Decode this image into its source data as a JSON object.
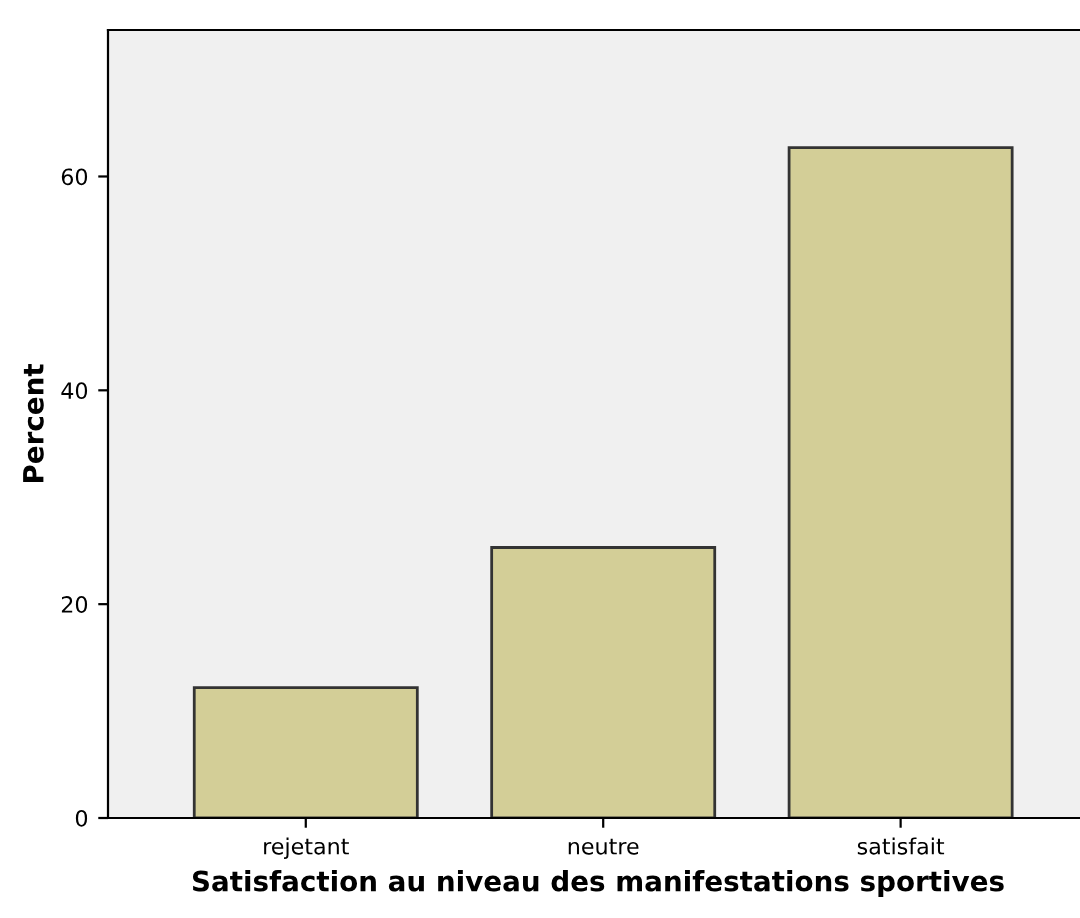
{
  "chart_data": {
    "type": "bar",
    "xlabel": "Satisfaction au niveau des manifestations sportives",
    "ylabel": "Percent",
    "categories": [
      "rejetant",
      "neutre",
      "satisfait"
    ],
    "values": [
      12.2,
      25.3,
      62.7
    ],
    "color": "#d3ce97",
    "ylim": [
      0,
      73.7
    ],
    "yticks": [
      0,
      20,
      40,
      60
    ],
    "grid": false
  }
}
